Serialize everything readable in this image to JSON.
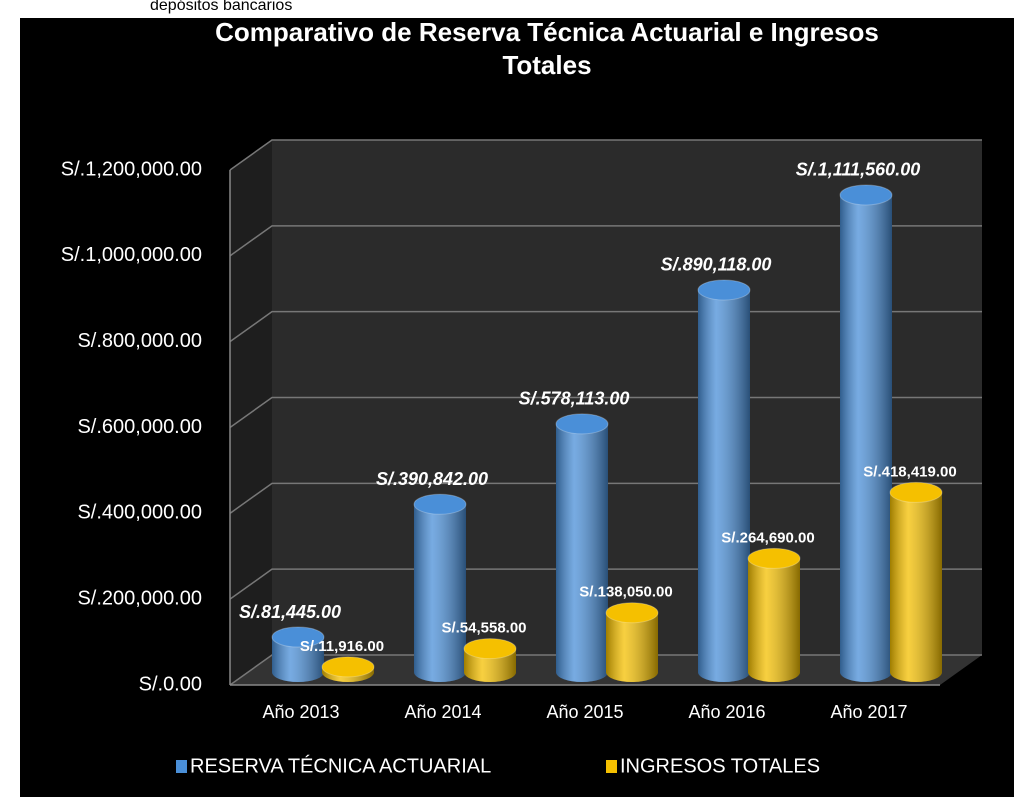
{
  "caption": "depósitos bancarios",
  "chart_data": {
    "type": "bar3d",
    "title": "Comparativo de Reserva Técnica Actuarial e Ingresos Totales",
    "categories": [
      "Año 2013",
      "Año 2014",
      "Año 2015",
      "Año 2016",
      "Año 2017"
    ],
    "series": [
      {
        "name": "RESERVA TÉCNICA ACTUARIAL",
        "color": "#4a8fd8",
        "values": [
          81445,
          390842,
          578113,
          890118,
          1111560
        ],
        "value_labels": [
          "S/.81,445.00",
          "S/.390,842.00",
          "S/.578,113.00",
          "S/.890,118.00",
          "S/.1,111,560.00"
        ]
      },
      {
        "name": "INGRESOS TOTALES",
        "color": "#f5c000",
        "values": [
          11916,
          54558,
          138050,
          264690,
          418419
        ],
        "value_labels": [
          "S/.11,916.00",
          "S/.54,558.00",
          "S/.138,050.00",
          "S/.264,690.00",
          "S/.418,419.00"
        ]
      }
    ],
    "ylim": [
      0,
      1200000
    ],
    "yticks": [
      {
        "value": 0,
        "label": "S/.0.00"
      },
      {
        "value": 200000,
        "label": "S/.200,000.00"
      },
      {
        "value": 400000,
        "label": "S/.400,000.00"
      },
      {
        "value": 600000,
        "label": "S/.600,000.00"
      },
      {
        "value": 800000,
        "label": "S/.800,000.00"
      },
      {
        "value": 1000000,
        "label": "S/.1,000,000.00"
      },
      {
        "value": 1200000,
        "label": "S/.1,200,000.00"
      }
    ],
    "grid": true,
    "legend": "bottom"
  }
}
